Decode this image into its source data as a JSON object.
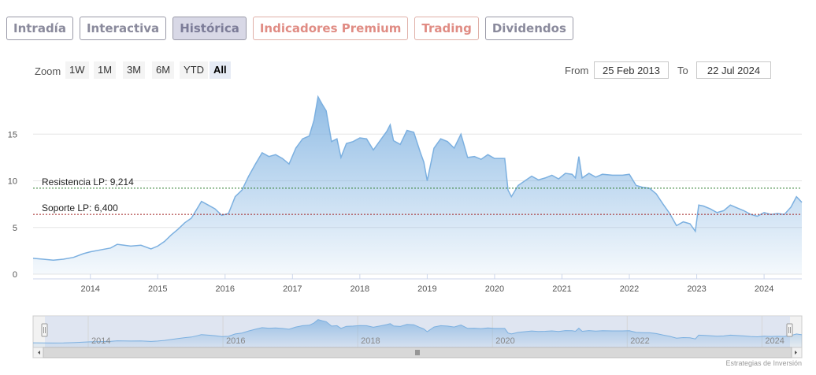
{
  "tabs": [
    {
      "label": "Intradía",
      "style": "normal"
    },
    {
      "label": "Interactiva",
      "style": "normal"
    },
    {
      "label": "Histórica",
      "style": "active"
    },
    {
      "label": "Indicadores Premium",
      "style": "premium"
    },
    {
      "label": "Trading",
      "style": "premium"
    },
    {
      "label": "Dividendos",
      "style": "normal"
    }
  ],
  "zoom": {
    "label": "Zoom",
    "buttons": [
      "1W",
      "1M",
      "3M",
      "6M",
      "YTD",
      "All"
    ],
    "selected": "All"
  },
  "range": {
    "from_label": "From",
    "from_value": "25 Feb 2013",
    "to_label": "To",
    "to_value": "22 Jul 2024"
  },
  "chart_data": {
    "type": "area",
    "title": "",
    "ylim": [
      0,
      20
    ],
    "xlim": [
      2013.15,
      2024.56
    ],
    "y_ticks": [
      "0",
      "5",
      "10",
      "15"
    ],
    "x_ticks": [
      "2014",
      "2015",
      "2016",
      "2017",
      "2018",
      "2019",
      "2020",
      "2021",
      "2022",
      "2023",
      "2024"
    ],
    "navigator_ticks": [
      "2014",
      "2016",
      "2018",
      "2020",
      "2022",
      "2024"
    ],
    "series": [
      {
        "color": "#7cb0e0",
        "points": [
          [
            2013.15,
            1.7
          ],
          [
            2013.3,
            1.6
          ],
          [
            2013.45,
            1.5
          ],
          [
            2013.6,
            1.6
          ],
          [
            2013.75,
            1.8
          ],
          [
            2013.9,
            2.2
          ],
          [
            2014.0,
            2.4
          ],
          [
            2014.15,
            2.6
          ],
          [
            2014.3,
            2.8
          ],
          [
            2014.4,
            3.2
          ],
          [
            2014.5,
            3.1
          ],
          [
            2014.6,
            3.0
          ],
          [
            2014.75,
            3.1
          ],
          [
            2014.9,
            2.7
          ],
          [
            2015.0,
            3.0
          ],
          [
            2015.1,
            3.5
          ],
          [
            2015.2,
            4.2
          ],
          [
            2015.3,
            4.8
          ],
          [
            2015.4,
            5.5
          ],
          [
            2015.5,
            6.0
          ],
          [
            2015.6,
            7.2
          ],
          [
            2015.65,
            7.8
          ],
          [
            2015.75,
            7.4
          ],
          [
            2015.85,
            7.0
          ],
          [
            2015.95,
            6.3
          ],
          [
            2016.05,
            6.5
          ],
          [
            2016.15,
            8.3
          ],
          [
            2016.25,
            9.0
          ],
          [
            2016.35,
            10.5
          ],
          [
            2016.45,
            11.8
          ],
          [
            2016.55,
            13.0
          ],
          [
            2016.65,
            12.6
          ],
          [
            2016.75,
            12.8
          ],
          [
            2016.85,
            12.4
          ],
          [
            2016.95,
            11.8
          ],
          [
            2017.05,
            13.5
          ],
          [
            2017.15,
            14.5
          ],
          [
            2017.25,
            14.8
          ],
          [
            2017.32,
            16.5
          ],
          [
            2017.38,
            19.0
          ],
          [
            2017.44,
            18.2
          ],
          [
            2017.5,
            17.5
          ],
          [
            2017.58,
            14.2
          ],
          [
            2017.66,
            14.5
          ],
          [
            2017.72,
            12.5
          ],
          [
            2017.8,
            14.0
          ],
          [
            2017.9,
            14.2
          ],
          [
            2018.0,
            14.6
          ],
          [
            2018.1,
            14.5
          ],
          [
            2018.2,
            13.3
          ],
          [
            2018.3,
            14.3
          ],
          [
            2018.4,
            15.3
          ],
          [
            2018.45,
            16.0
          ],
          [
            2018.5,
            14.3
          ],
          [
            2018.6,
            13.9
          ],
          [
            2018.7,
            15.4
          ],
          [
            2018.8,
            15.2
          ],
          [
            2018.9,
            13.0
          ],
          [
            2018.95,
            12.0
          ],
          [
            2019.0,
            10.0
          ],
          [
            2019.1,
            13.5
          ],
          [
            2019.2,
            14.5
          ],
          [
            2019.3,
            14.2
          ],
          [
            2019.4,
            13.5
          ],
          [
            2019.5,
            15.0
          ],
          [
            2019.6,
            12.5
          ],
          [
            2019.7,
            12.6
          ],
          [
            2019.8,
            12.3
          ],
          [
            2019.9,
            12.8
          ],
          [
            2020.0,
            12.4
          ],
          [
            2020.15,
            12.4
          ],
          [
            2020.2,
            9.0
          ],
          [
            2020.25,
            8.3
          ],
          [
            2020.35,
            9.5
          ],
          [
            2020.45,
            10.0
          ],
          [
            2020.55,
            10.5
          ],
          [
            2020.65,
            10.1
          ],
          [
            2020.75,
            10.3
          ],
          [
            2020.85,
            10.6
          ],
          [
            2020.95,
            10.2
          ],
          [
            2021.05,
            10.8
          ],
          [
            2021.15,
            10.7
          ],
          [
            2021.2,
            10.3
          ],
          [
            2021.25,
            12.6
          ],
          [
            2021.3,
            10.3
          ],
          [
            2021.4,
            10.8
          ],
          [
            2021.5,
            10.4
          ],
          [
            2021.6,
            10.7
          ],
          [
            2021.75,
            10.6
          ],
          [
            2021.9,
            10.6
          ],
          [
            2022.0,
            10.7
          ],
          [
            2022.1,
            9.5
          ],
          [
            2022.2,
            9.3
          ],
          [
            2022.3,
            9.2
          ],
          [
            2022.4,
            8.6
          ],
          [
            2022.5,
            7.5
          ],
          [
            2022.6,
            6.5
          ],
          [
            2022.7,
            5.2
          ],
          [
            2022.8,
            5.6
          ],
          [
            2022.9,
            5.4
          ],
          [
            2022.98,
            4.6
          ],
          [
            2023.03,
            7.4
          ],
          [
            2023.1,
            7.3
          ],
          [
            2023.2,
            7.0
          ],
          [
            2023.3,
            6.6
          ],
          [
            2023.4,
            6.8
          ],
          [
            2023.5,
            7.4
          ],
          [
            2023.6,
            7.1
          ],
          [
            2023.7,
            6.8
          ],
          [
            2023.8,
            6.4
          ],
          [
            2023.9,
            6.2
          ],
          [
            2024.0,
            6.6
          ],
          [
            2024.1,
            6.4
          ],
          [
            2024.2,
            6.5
          ],
          [
            2024.3,
            6.4
          ],
          [
            2024.4,
            7.2
          ],
          [
            2024.48,
            8.3
          ],
          [
            2024.56,
            7.7
          ]
        ]
      }
    ],
    "plot_lines": [
      {
        "label": "Resistencia LP: 9,214",
        "value": 9.214,
        "color": "#2a7a2a"
      },
      {
        "label": "Soporte LP: 6,400",
        "value": 6.4,
        "color": "#a02020"
      }
    ]
  },
  "credit": "Estrategias de Inversión"
}
